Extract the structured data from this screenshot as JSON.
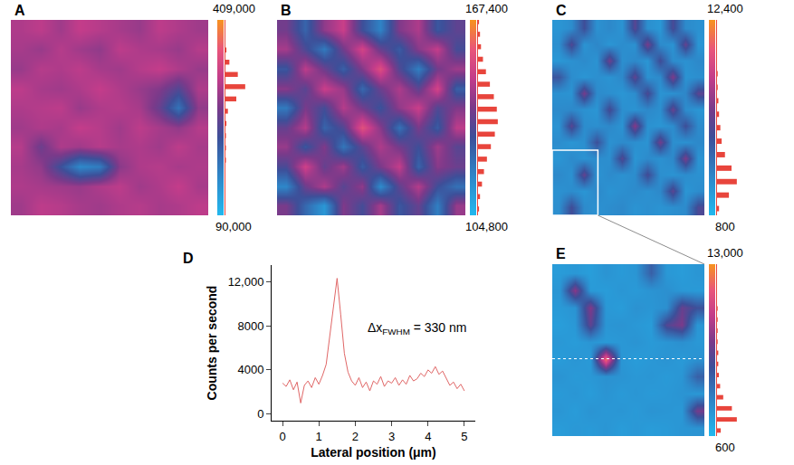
{
  "chart_data": [
    {
      "type": "heatmap",
      "label": "A",
      "zlim": [
        90000,
        409000
      ],
      "zticks": [
        {
          "value": 409000,
          "label": "409,000"
        },
        {
          "value": 90000,
          "label": "90,000"
        }
      ],
      "histogram": {
        "bins": [
          90000,
          110000,
          130000,
          150000,
          170000,
          190000,
          210000,
          230000,
          250000,
          270000,
          290000,
          310000,
          330000,
          350000,
          370000,
          390000,
          410000
        ],
        "counts": [
          0,
          0,
          0,
          0,
          1,
          1,
          1,
          2,
          5,
          22,
          40,
          25,
          8,
          2,
          0,
          0
        ]
      },
      "z": [
        [
          300000,
          310000,
          290000,
          315000,
          305000,
          295000,
          285000,
          310000,
          300000,
          290000
        ],
        [
          295000,
          285000,
          305000,
          290000,
          280000,
          310000,
          300000,
          295000,
          285000,
          305000
        ],
        [
          285000,
          305000,
          300000,
          310000,
          295000,
          290000,
          305000,
          315000,
          300000,
          285000
        ],
        [
          310000,
          295000,
          290000,
          300000,
          315000,
          300000,
          285000,
          270000,
          235000,
          300000
        ],
        [
          300000,
          305000,
          310000,
          285000,
          300000,
          305000,
          295000,
          250000,
          175000,
          280000
        ],
        [
          290000,
          300000,
          295000,
          315000,
          305000,
          290000,
          310000,
          295000,
          280000,
          305000
        ],
        [
          305000,
          255000,
          300000,
          290000,
          305000,
          295000,
          300000,
          290000,
          310000,
          295000
        ],
        [
          295000,
          280000,
          215000,
          150000,
          165000,
          275000,
          300000,
          305000,
          295000,
          300000
        ],
        [
          300000,
          295000,
          290000,
          285000,
          300000,
          310000,
          290000,
          300000,
          315000,
          295000
        ],
        [
          290000,
          310000,
          305000,
          295000,
          290000,
          300000,
          305000,
          295000,
          300000,
          310000
        ]
      ]
    },
    {
      "type": "heatmap",
      "label": "B",
      "zlim": [
        104800,
        167400
      ],
      "zticks": [
        {
          "value": 167400,
          "label": "167,400"
        },
        {
          "value": 104800,
          "label": "104,800"
        }
      ],
      "histogram": {
        "bins": [
          104800,
          108800,
          112800,
          116800,
          120800,
          124800,
          128800,
          132800,
          136800,
          140800,
          144800,
          148800,
          152800,
          156800,
          160800,
          164800,
          168800
        ],
        "counts": [
          1,
          2,
          4,
          6,
          9,
          13,
          17,
          20,
          19,
          16,
          12,
          8,
          5,
          3,
          2,
          1
        ]
      },
      "z": [
        [
          138000,
          125000,
          142000,
          150000,
          130000,
          118000,
          140000,
          146000,
          128000,
          135000
        ],
        [
          145000,
          132000,
          120000,
          138000,
          152000,
          136000,
          127000,
          141000,
          149000,
          131000
        ],
        [
          128000,
          148000,
          137000,
          126000,
          140000,
          155000,
          133000,
          119000,
          138000,
          144000
        ],
        [
          141000,
          134000,
          150000,
          143000,
          124000,
          137000,
          146000,
          135000,
          152000,
          126000
        ],
        [
          120000,
          139000,
          131000,
          147000,
          138000,
          129000,
          142000,
          150000,
          133000,
          140000
        ],
        [
          136000,
          147000,
          125000,
          133000,
          156000,
          141000,
          122000,
          139000,
          127000,
          148000
        ],
        [
          143000,
          128000,
          140000,
          121000,
          135000,
          146000,
          138000,
          130000,
          144000,
          134000
        ],
        [
          132000,
          151000,
          136000,
          144000,
          127000,
          139000,
          149000,
          125000,
          141000,
          137000
        ],
        [
          117000,
          137000,
          146000,
          134000,
          142000,
          116000,
          135000,
          147000,
          130000,
          122000
        ],
        [
          139000,
          124000,
          113000,
          140000,
          131000,
          145000,
          128000,
          136000,
          119000,
          143000
        ]
      ]
    },
    {
      "type": "heatmap",
      "label": "C",
      "zlim": [
        800,
        12400
      ],
      "zticks": [
        {
          "value": 12400,
          "label": "12,400"
        },
        800
      ],
      "histogram": {
        "bins": [
          800,
          1600,
          2400,
          3200,
          4000,
          4800,
          5600,
          6400,
          7200,
          8000,
          8800,
          9600,
          10400,
          11200,
          12000,
          12800
        ],
        "counts": [
          3,
          18,
          30,
          22,
          12,
          7,
          5,
          3,
          2,
          1,
          1,
          0,
          0,
          0,
          0
        ]
      },
      "zoom_region": {
        "x": [
          -0.5,
          3.1
        ],
        "y": [
          7.5,
          11.5
        ]
      },
      "z": [
        [
          2400,
          2800,
          5500,
          2600,
          3000,
          2500,
          6200,
          2700,
          2300,
          5800,
          2900,
          2600
        ],
        [
          2700,
          6000,
          2500,
          3100,
          2400,
          2800,
          2600,
          7000,
          2900,
          2500,
          6500,
          2400
        ],
        [
          2300,
          2600,
          2900,
          2500,
          6800,
          2700,
          3000,
          2400,
          5600,
          2800,
          2600,
          3000
        ],
        [
          5200,
          2800,
          2400,
          2700,
          2500,
          3000,
          6400,
          2600,
          2900,
          7200,
          2500,
          2700
        ],
        [
          2600,
          2500,
          7000,
          2900,
          2700,
          2400,
          2800,
          5900,
          2500,
          2600,
          3100,
          6300
        ],
        [
          2900,
          3000,
          2600,
          2400,
          5800,
          2700,
          2500,
          3000,
          2700,
          6600,
          2800,
          2400
        ],
        [
          2500,
          6200,
          2800,
          2700,
          3000,
          2500,
          7400,
          2600,
          2400,
          2800,
          5500,
          2900
        ],
        [
          2800,
          2400,
          2700,
          5400,
          2600,
          2900,
          2700,
          2500,
          6900,
          2700,
          2600,
          3000
        ],
        [
          2400,
          2900,
          2500,
          2800,
          2700,
          6100,
          2400,
          2900,
          2600,
          3000,
          7100,
          2500
        ],
        [
          3000,
          2600,
          6500,
          2500,
          2900,
          2600,
          2800,
          5700,
          2700,
          2500,
          2800,
          2600
        ],
        [
          2600,
          2800,
          2400,
          3000,
          2500,
          2700,
          2900,
          2600,
          3000,
          6300,
          2400,
          2800
        ],
        [
          2700,
          5600,
          2900,
          2600,
          2800,
          3000,
          2500,
          2700,
          2500,
          2700,
          2900,
          5900
        ]
      ]
    },
    {
      "type": "heatmap",
      "label": "E",
      "zlim": [
        600,
        13000
      ],
      "zticks": [
        {
          "value": 13000,
          "label": "13,000"
        },
        600
      ],
      "histogram": {
        "bins": [
          600,
          1400,
          2200,
          3000,
          3800,
          4600,
          5400,
          6200,
          7000,
          7800,
          8600,
          9400,
          10200,
          11000,
          11800,
          12600,
          13400
        ],
        "counts": [
          6,
          32,
          24,
          10,
          5,
          3,
          2,
          2,
          1,
          1,
          1,
          1,
          0,
          0,
          0,
          0
        ]
      },
      "profile_y": 5,
      "z": [
        [
          2000,
          2200,
          1900,
          2400,
          2100,
          2300,
          4800,
          2200,
          2000,
          2300
        ],
        [
          2300,
          7800,
          2100,
          2000,
          2300,
          2100,
          2400,
          2600,
          2200,
          2100
        ],
        [
          2100,
          2400,
          7600,
          2200,
          2000,
          2500,
          2300,
          2600,
          6800,
          5500
        ],
        [
          1900,
          2200,
          6600,
          2300,
          2400,
          2200,
          2000,
          6200,
          7400,
          2300
        ],
        [
          2200,
          2000,
          2300,
          2100,
          2200,
          2400,
          2100,
          2300,
          2600,
          2200
        ],
        [
          2000,
          2300,
          2100,
          11800,
          2300,
          2000,
          2200,
          2400,
          2100,
          2500
        ],
        [
          2400,
          2100,
          2200,
          2500,
          2400,
          2200,
          2300,
          2100,
          2300,
          4800
        ],
        [
          2100,
          2300,
          2000,
          2400,
          2100,
          2300,
          2100,
          2200,
          2400,
          2200
        ],
        [
          2300,
          2000,
          2400,
          2200,
          2300,
          2100,
          2400,
          2300,
          2200,
          7200
        ],
        [
          2000,
          2200,
          2100,
          2300,
          2000,
          2200,
          2000,
          2100,
          2300,
          2400
        ]
      ]
    },
    {
      "type": "line",
      "label": "D",
      "x_label": "Lateral position (μm)",
      "y_label": "Counts per second",
      "color": "#e06666",
      "xlim": [
        -0.3,
        5.3
      ],
      "ylim": [
        -600,
        13500
      ],
      "xticks": [
        0,
        1,
        2,
        3,
        4,
        5
      ],
      "yticks": [
        0,
        4000,
        8000,
        {
          "value": 12000,
          "label": "12,000"
        }
      ],
      "annotation": {
        "main": "Δx",
        "sub": "FWHM",
        "after": " = 330 nm",
        "x": 2.3,
        "y": 7800
      },
      "x": [
        0,
        0.1,
        0.2,
        0.3,
        0.4,
        0.5,
        0.6,
        0.7,
        0.8,
        0.9,
        1.0,
        1.1,
        1.2,
        1.3,
        1.4,
        1.5,
        1.6,
        1.7,
        1.8,
        1.9,
        2.0,
        2.1,
        2.2,
        2.3,
        2.4,
        2.5,
        2.6,
        2.7,
        2.8,
        2.9,
        3.0,
        3.1,
        3.2,
        3.3,
        3.4,
        3.5,
        3.6,
        3.7,
        3.8,
        3.9,
        4.0,
        4.1,
        4.2,
        4.3,
        4.4,
        4.5,
        4.6,
        4.7,
        4.8,
        4.9,
        5.0
      ],
      "values": [
        2800,
        2500,
        3100,
        2200,
        2900,
        1000,
        2600,
        3000,
        2400,
        3300,
        2700,
        3500,
        4500,
        7000,
        9500,
        12300,
        9000,
        5500,
        3800,
        3000,
        2600,
        3300,
        2400,
        2900,
        2100,
        3000,
        2700,
        3400,
        2500,
        3000,
        2800,
        3300,
        2600,
        3100,
        2700,
        3500,
        3000,
        3200,
        3700,
        3400,
        4000,
        3700,
        4300,
        3600,
        3900,
        3200,
        2600,
        2900,
        2300,
        2700,
        2100
      ]
    }
  ]
}
